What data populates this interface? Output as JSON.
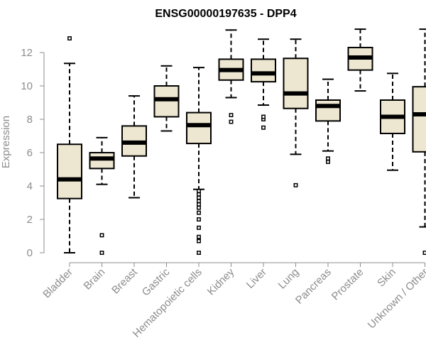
{
  "chart_data": {
    "type": "boxplot",
    "title": "ENSG00000197635 - DPP4",
    "ylabel": "Expression",
    "ylim": [
      0,
      13.4
    ],
    "yticks": [
      0,
      2,
      4,
      6,
      8,
      10,
      12
    ],
    "box_fill": "#ede6d0",
    "categories": [
      "Bladder",
      "Brain",
      "Breast",
      "Gastric",
      "Hematopoietic cells",
      "Kidney",
      "Liver",
      "Lung",
      "Pancreas",
      "Prostate",
      "Skin",
      "Unknown / Other"
    ],
    "boxes": [
      {
        "category": "Bladder",
        "whisker_low": 0.0,
        "q1": 3.25,
        "median": 4.4,
        "q3": 6.5,
        "whisker_high": 11.35,
        "outliers": [
          12.85
        ]
      },
      {
        "category": "Brain",
        "whisker_low": 4.1,
        "q1": 5.05,
        "median": 5.65,
        "q3": 6.0,
        "whisker_high": 6.9,
        "outliers": [
          0.0,
          1.05
        ]
      },
      {
        "category": "Breast",
        "whisker_low": 3.3,
        "q1": 5.8,
        "median": 6.6,
        "q3": 7.6,
        "whisker_high": 9.4,
        "outliers": []
      },
      {
        "category": "Gastric",
        "whisker_low": 7.3,
        "q1": 8.15,
        "median": 9.2,
        "q3": 10.0,
        "whisker_high": 11.2,
        "outliers": []
      },
      {
        "category": "Hematopoietic cells",
        "whisker_low": 3.8,
        "q1": 6.55,
        "median": 7.65,
        "q3": 8.4,
        "whisker_high": 11.1,
        "outliers": [
          0.0,
          0.7,
          0.95,
          1.5,
          2.0,
          2.4,
          2.7,
          2.9,
          3.1,
          3.3,
          3.5,
          3.7
        ]
      },
      {
        "category": "Kidney",
        "whisker_low": 9.3,
        "q1": 10.35,
        "median": 10.95,
        "q3": 11.6,
        "whisker_high": 13.35,
        "outliers": [
          7.85,
          8.25
        ]
      },
      {
        "category": "Liver",
        "whisker_low": 8.85,
        "q1": 10.25,
        "median": 10.75,
        "q3": 11.6,
        "whisker_high": 12.8,
        "outliers": [
          7.5,
          8.0,
          8.15
        ]
      },
      {
        "category": "Lung",
        "whisker_low": 5.9,
        "q1": 8.65,
        "median": 9.55,
        "q3": 11.65,
        "whisker_high": 12.8,
        "outliers": [
          4.05
        ]
      },
      {
        "category": "Pancreas",
        "whisker_low": 6.1,
        "q1": 7.9,
        "median": 8.8,
        "q3": 9.15,
        "whisker_high": 10.4,
        "outliers": [
          5.45,
          5.65
        ]
      },
      {
        "category": "Prostate",
        "whisker_low": 9.7,
        "q1": 10.95,
        "median": 11.7,
        "q3": 12.3,
        "whisker_high": 13.4,
        "outliers": []
      },
      {
        "category": "Skin",
        "whisker_low": 4.95,
        "q1": 7.15,
        "median": 8.15,
        "q3": 9.15,
        "whisker_high": 10.75,
        "outliers": []
      },
      {
        "category": "Unknown / Other",
        "whisker_low": 1.55,
        "q1": 6.05,
        "median": 8.3,
        "q3": 9.95,
        "whisker_high": 13.4,
        "outliers": [
          0.0
        ]
      }
    ]
  }
}
